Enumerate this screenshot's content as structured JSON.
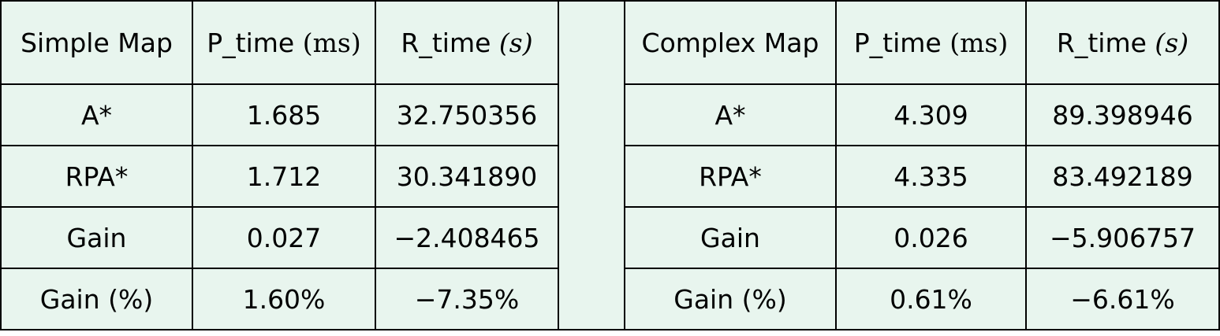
{
  "simple": {
    "header": {
      "map_label": "Simple Map",
      "p_time_prefix": "P_time ",
      "p_time_unit": "(ms)",
      "r_time_prefix": "R_time ",
      "r_time_unit": "(s)"
    },
    "rows": [
      {
        "label": "A*",
        "p_time": "1.685",
        "r_time": "32.750356"
      },
      {
        "label": "RPA*",
        "p_time": "1.712",
        "r_time": "30.341890"
      },
      {
        "label": "Gain",
        "p_time": "0.027",
        "r_time": "−2.408465"
      },
      {
        "label": "Gain (%)",
        "p_time": "1.60%",
        "r_time": "−7.35%"
      }
    ]
  },
  "complex": {
    "header": {
      "map_label": "Complex Map",
      "p_time_prefix": "P_time ",
      "p_time_unit": "(ms)",
      "r_time_prefix": "R_time ",
      "r_time_unit": "(s)"
    },
    "rows": [
      {
        "label": "A*",
        "p_time": "4.309",
        "r_time": "89.398946"
      },
      {
        "label": "RPA*",
        "p_time": "4.335",
        "r_time": "83.492189"
      },
      {
        "label": "Gain",
        "p_time": "0.026",
        "r_time": "−5.906757"
      },
      {
        "label": "Gain (%)",
        "p_time": "0.61%",
        "r_time": "−6.61%"
      }
    ]
  }
}
